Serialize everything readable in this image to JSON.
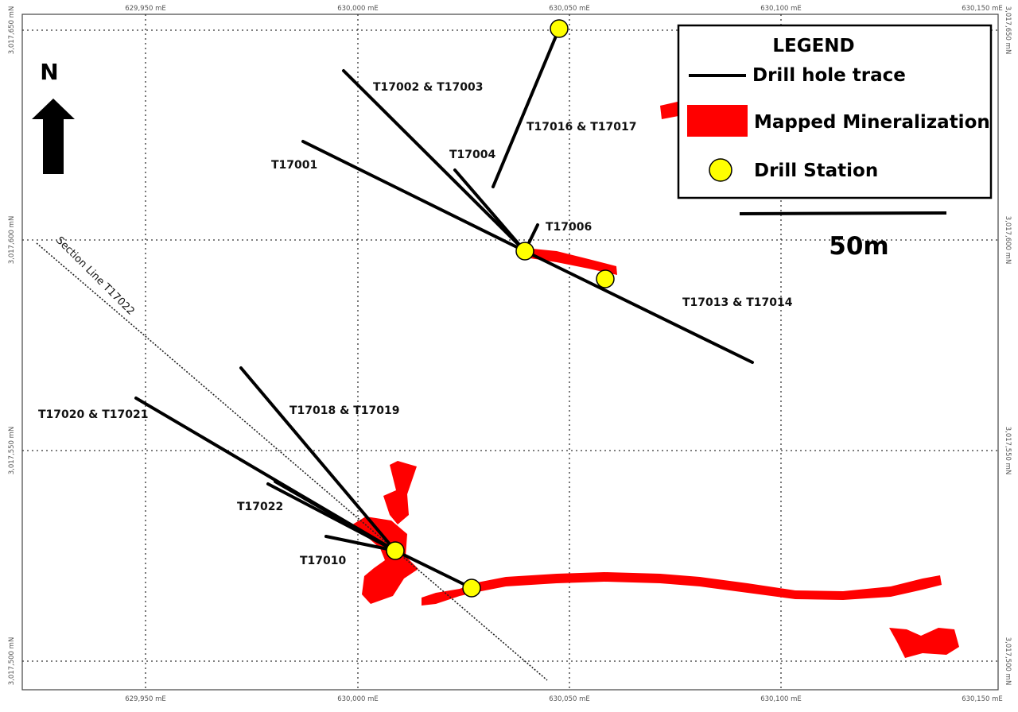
{
  "coords": {
    "easting_top": [
      "629,950 mE",
      "630,000 mE",
      "630,050 mE",
      "630,100 mE",
      "630,150 mE"
    ],
    "easting_bottom": [
      "629,950 mE",
      "630,000 mE",
      "630,050 mE",
      "630,100 mE",
      "630,150 mE"
    ],
    "northing_left": [
      "3,017,650 mN",
      "3,017,600 mN",
      "3,017,550 mN",
      "3,017,500 mN"
    ],
    "northing_right": [
      "3,017,650 mN",
      "3,017,600 mN",
      "3,017,550 mN",
      "3,017,500 mN"
    ]
  },
  "north_arrow": {
    "label": "N"
  },
  "legend": {
    "title": "LEGEND",
    "items": [
      {
        "label": "Drill hole trace",
        "symbol": "line",
        "color": "#000000"
      },
      {
        "label": "Mapped Mineralization",
        "symbol": "area",
        "color": "#ff0000"
      },
      {
        "label": "Drill Station",
        "symbol": "circle",
        "color": "#ffff00"
      }
    ]
  },
  "scale_bar": {
    "label": "50m"
  },
  "section_line": {
    "label": "Section Line T17022"
  },
  "drill_holes": [
    {
      "label": "T17002 & T17003"
    },
    {
      "label": "T17016 & T17017"
    },
    {
      "label": "T17004"
    },
    {
      "label": "T17001"
    },
    {
      "label": "T17006"
    },
    {
      "label": "T17013 & T17014"
    },
    {
      "label": "T17018 & T17019"
    },
    {
      "label": "T17020 & T17021"
    },
    {
      "label": "T17022"
    },
    {
      "label": "T17010"
    }
  ],
  "colors": {
    "mineralization": "#ff0000",
    "drill_station": "#ffff00",
    "drill_trace": "#000000",
    "grid": "#333333"
  }
}
